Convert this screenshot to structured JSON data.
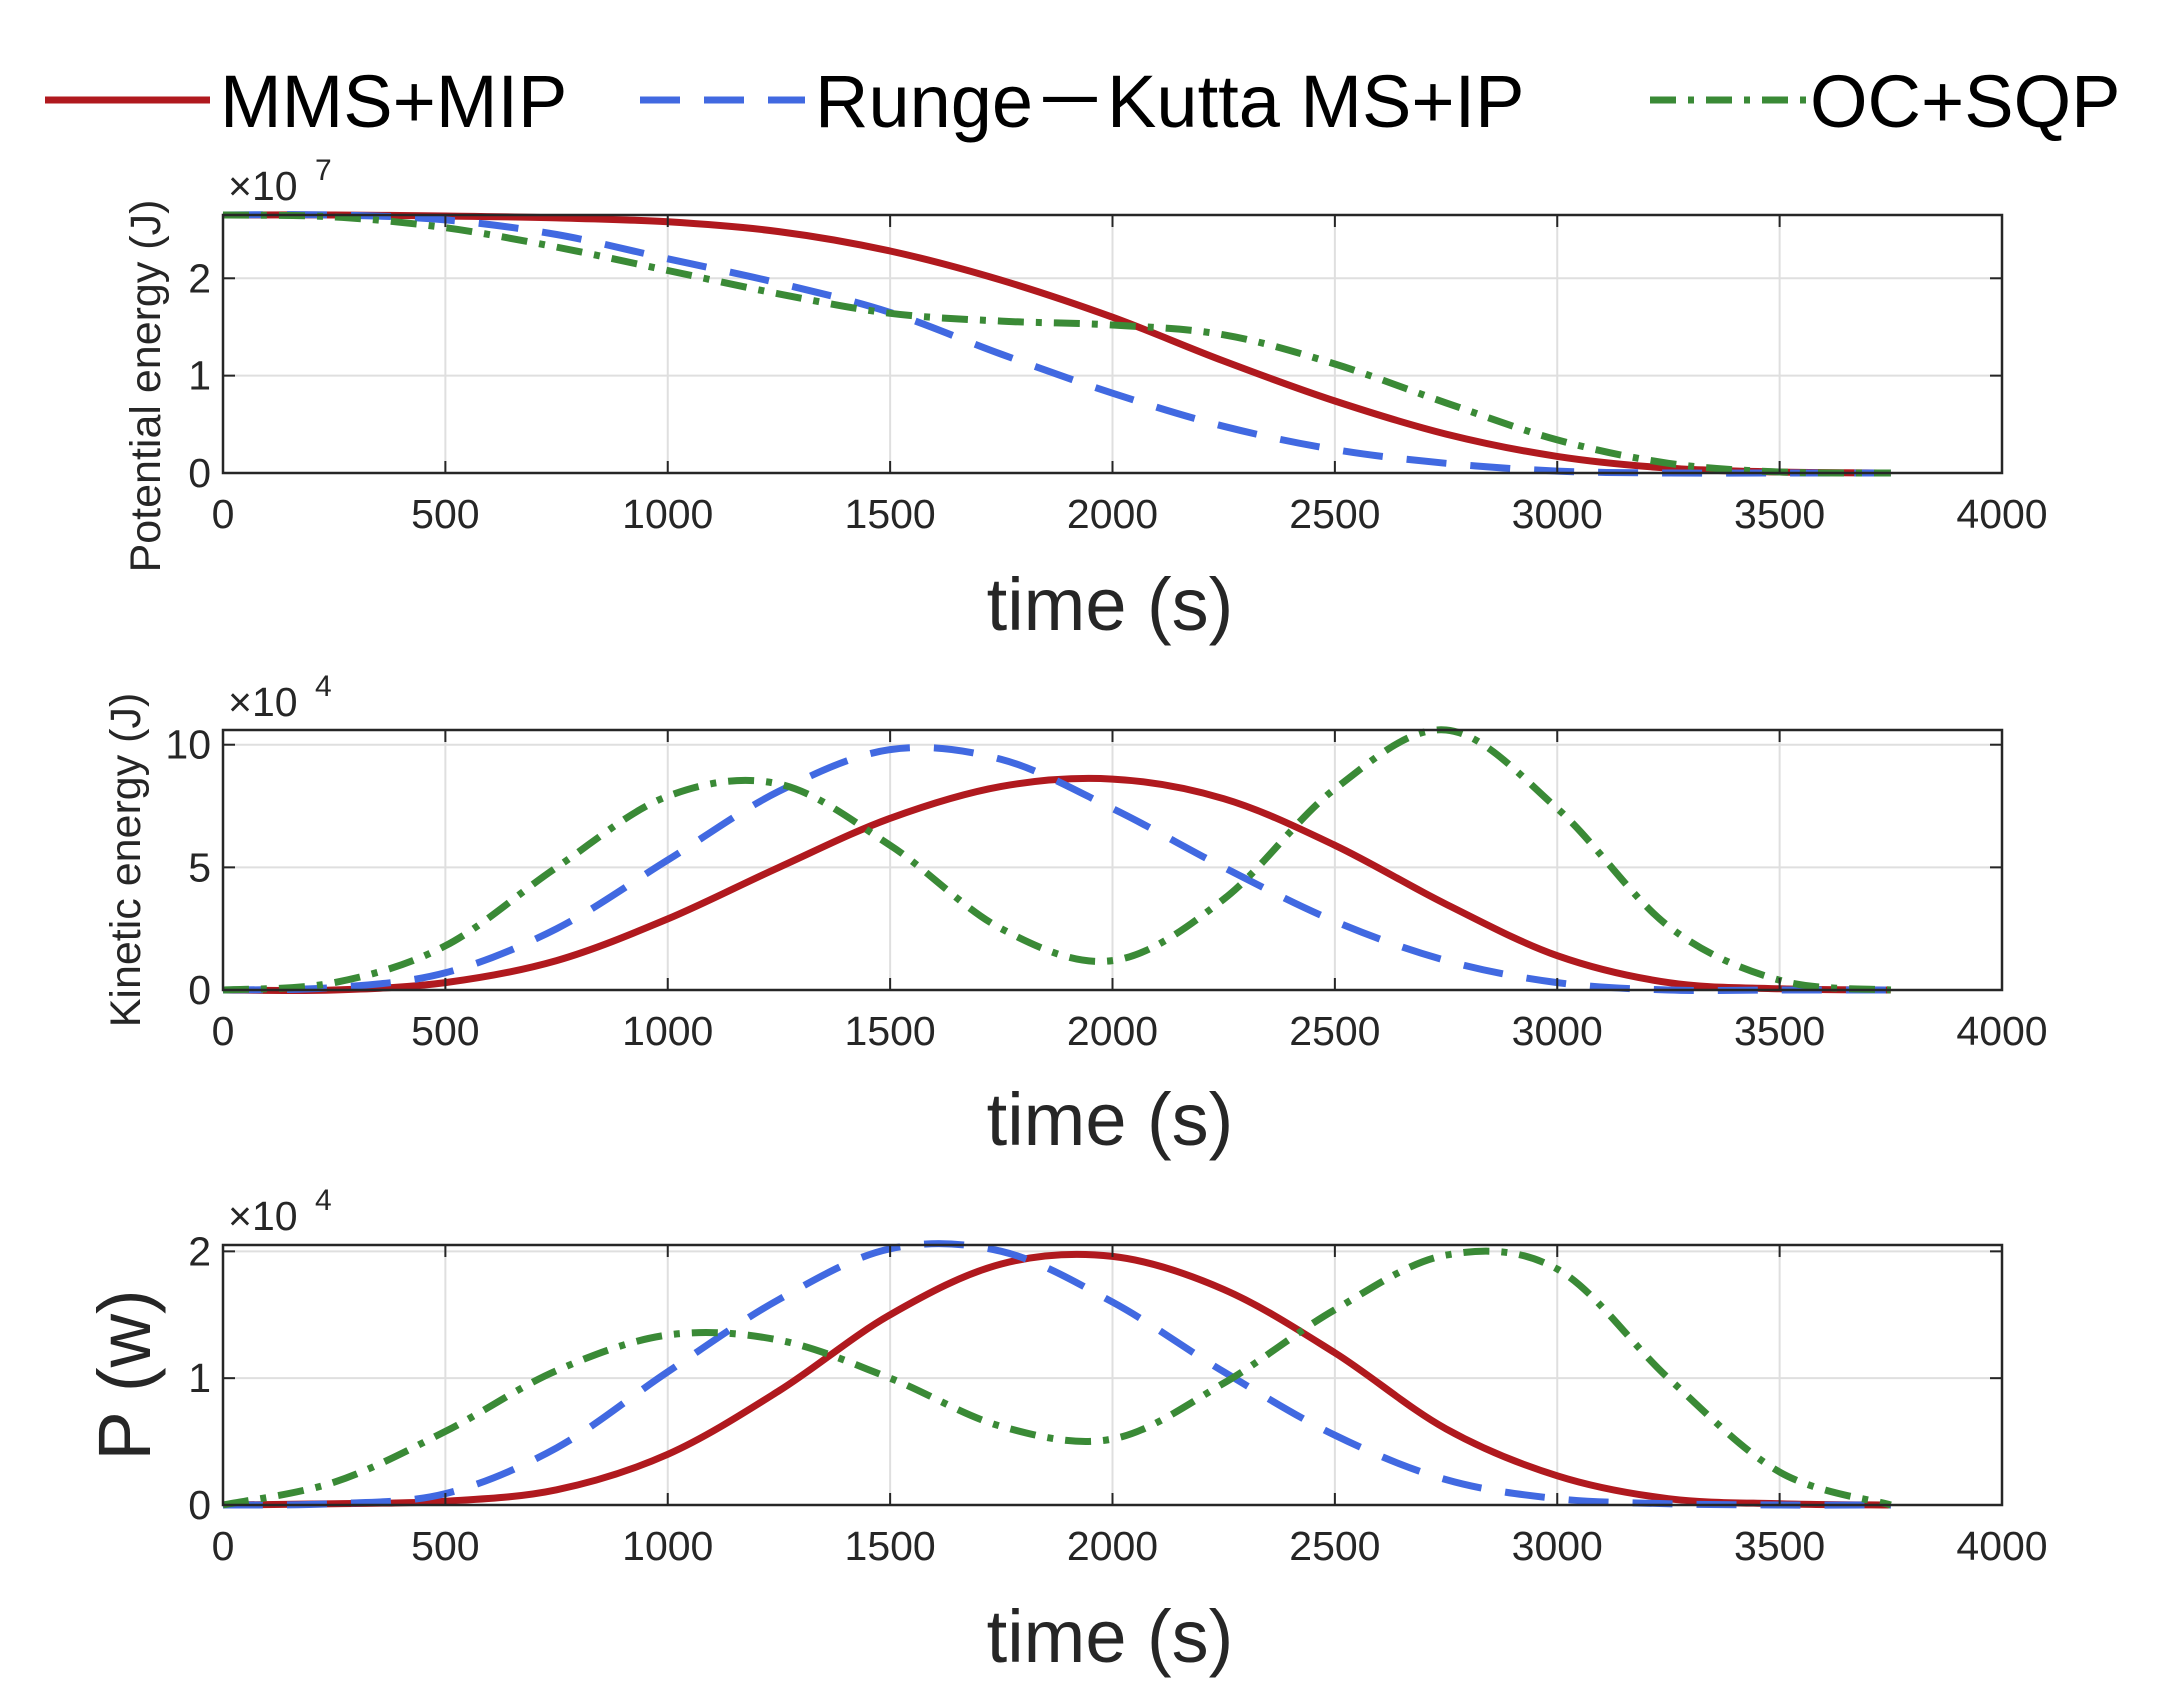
{
  "legend": {
    "entries": [
      {
        "name": "MMS+MIP",
        "color": "#b0191e",
        "dash": "solid"
      },
      {
        "name": "Runge－Kutta MS+IP",
        "color": "#4169e1",
        "dash": "dashed"
      },
      {
        "name": "OC+SQP",
        "color": "#3a8a36",
        "dash": "dashdot"
      }
    ]
  },
  "chart_data": [
    {
      "type": "line",
      "title": "",
      "xlabel": "time (s)",
      "ylabel": "Potential energy (J)",
      "multiplier_base": "×10",
      "multiplier_exp": "7",
      "xlim": [
        0,
        4000
      ],
      "ylim": [
        0,
        2.65
      ],
      "xticks": [
        0,
        500,
        1000,
        1500,
        2000,
        2500,
        3000,
        3500,
        4000
      ],
      "yticks": [
        0,
        1,
        2
      ],
      "grid": true,
      "x": [
        0,
        250,
        500,
        750,
        1000,
        1250,
        1500,
        1750,
        2000,
        2250,
        2500,
        2750,
        3000,
        3250,
        3500,
        3750
      ],
      "series": [
        {
          "name": "MMS+MIP",
          "values": [
            2.65,
            2.65,
            2.64,
            2.62,
            2.58,
            2.48,
            2.28,
            1.98,
            1.6,
            1.15,
            0.74,
            0.4,
            0.17,
            0.05,
            0.01,
            0.0
          ]
        },
        {
          "name": "Runge－Kutta MS+IP",
          "values": [
            2.65,
            2.65,
            2.6,
            2.45,
            2.2,
            1.95,
            1.65,
            1.22,
            0.82,
            0.48,
            0.24,
            0.1,
            0.02,
            0.0,
            0.0,
            0.0
          ]
        },
        {
          "name": "OC+SQP",
          "values": [
            2.65,
            2.63,
            2.52,
            2.32,
            2.08,
            1.84,
            1.64,
            1.56,
            1.52,
            1.42,
            1.12,
            0.72,
            0.34,
            0.1,
            0.01,
            0.0
          ]
        }
      ]
    },
    {
      "type": "line",
      "title": "",
      "xlabel": "time (s)",
      "ylabel": "Kinetic energy (J)",
      "multiplier_base": "×10",
      "multiplier_exp": "4",
      "xlim": [
        0,
        4000
      ],
      "ylim": [
        0,
        10.6
      ],
      "xticks": [
        0,
        500,
        1000,
        1500,
        2000,
        2500,
        3000,
        3500,
        4000
      ],
      "yticks": [
        0,
        5,
        10
      ],
      "grid": true,
      "x": [
        0,
        250,
        500,
        750,
        1000,
        1250,
        1500,
        1750,
        2000,
        2250,
        2500,
        2750,
        3000,
        3250,
        3500,
        3750
      ],
      "series": [
        {
          "name": "MMS+MIP",
          "values": [
            0.0,
            0.0,
            0.3,
            1.2,
            2.9,
            5.0,
            7.0,
            8.3,
            8.6,
            7.8,
            5.9,
            3.5,
            1.4,
            0.3,
            0.05,
            0.0
          ]
        },
        {
          "name": "Runge－Kutta MS+IP",
          "values": [
            0.0,
            0.1,
            0.7,
            2.5,
            5.3,
            8.1,
            9.8,
            9.4,
            7.4,
            5.0,
            2.8,
            1.2,
            0.3,
            0.0,
            0.0,
            0.0
          ]
        },
        {
          "name": "OC+SQP",
          "values": [
            0.0,
            0.3,
            1.8,
            5.0,
            7.9,
            8.4,
            5.9,
            2.5,
            1.2,
            3.7,
            8.2,
            10.6,
            7.4,
            2.6,
            0.4,
            0.0
          ]
        }
      ]
    },
    {
      "type": "line",
      "title": "",
      "xlabel": "time (s)",
      "ylabel": "P (w)",
      "multiplier_base": "×10",
      "multiplier_exp": "4",
      "xlim": [
        0,
        4000
      ],
      "ylim": [
        0,
        2.05
      ],
      "xticks": [
        0,
        500,
        1000,
        1500,
        2000,
        2500,
        3000,
        3500,
        4000
      ],
      "yticks": [
        0,
        1,
        2
      ],
      "grid": true,
      "x": [
        0,
        250,
        500,
        750,
        1000,
        1250,
        1500,
        1750,
        2000,
        2250,
        2500,
        2750,
        3000,
        3250,
        3500,
        3750
      ],
      "series": [
        {
          "name": "MMS+MIP",
          "values": [
            0.0,
            0.01,
            0.03,
            0.12,
            0.4,
            0.9,
            1.5,
            1.9,
            1.96,
            1.7,
            1.2,
            0.6,
            0.23,
            0.05,
            0.01,
            0.0
          ]
        },
        {
          "name": "Runge－Kutta MS+IP",
          "values": [
            0.0,
            0.01,
            0.09,
            0.45,
            1.05,
            1.62,
            2.02,
            2.0,
            1.6,
            1.05,
            0.55,
            0.2,
            0.05,
            0.01,
            0.0,
            0.0
          ]
        },
        {
          "name": "OC+SQP",
          "values": [
            0.0,
            0.18,
            0.58,
            1.06,
            1.34,
            1.3,
            1.0,
            0.62,
            0.52,
            0.96,
            1.54,
            1.97,
            1.86,
            1.0,
            0.26,
            0.0
          ]
        }
      ]
    }
  ]
}
